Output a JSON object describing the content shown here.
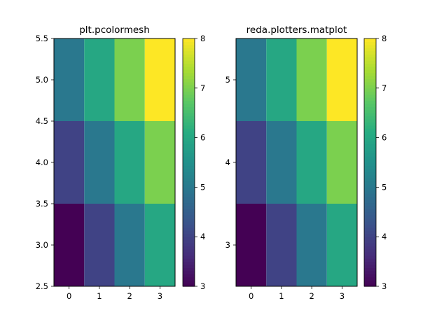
{
  "chart_data": [
    {
      "type": "heatmap",
      "title": "plt.pcolormesh",
      "xlabel": "",
      "ylabel": "",
      "x_ticks": [
        "0",
        "1",
        "2",
        "3"
      ],
      "y_ticks": [
        "2.5",
        "3.0",
        "3.5",
        "4.0",
        "4.5",
        "5.0",
        "5.5"
      ],
      "xlim": [
        -0.5,
        3.5
      ],
      "ylim": [
        2.5,
        5.5
      ],
      "x_centers": [
        0,
        1,
        2,
        3
      ],
      "y_edges": [
        2.5,
        3.5,
        4.5,
        5.5
      ],
      "values": [
        [
          3,
          4,
          5,
          6
        ],
        [
          4,
          5,
          6,
          7
        ],
        [
          5,
          6,
          7,
          8
        ]
      ],
      "colorbar": {
        "min": 3,
        "max": 8,
        "ticks": [
          "3",
          "4",
          "5",
          "6",
          "7",
          "8"
        ]
      },
      "colormap": "viridis"
    },
    {
      "type": "heatmap",
      "title": "reda.plotters.matplot",
      "xlabel": "",
      "ylabel": "",
      "x_ticks": [
        "0",
        "1",
        "2",
        "3"
      ],
      "y_ticks": [
        "3",
        "4",
        "5"
      ],
      "xlim": [
        -0.5,
        3.5
      ],
      "ylim": [
        2.5,
        5.5
      ],
      "x_centers": [
        0,
        1,
        2,
        3
      ],
      "y_edges": [
        2.5,
        3.5,
        4.5,
        5.5
      ],
      "values": [
        [
          3,
          4,
          5,
          6
        ],
        [
          4,
          5,
          6,
          7
        ],
        [
          5,
          6,
          7,
          8
        ]
      ],
      "colorbar": {
        "min": 3,
        "max": 8,
        "ticks": [
          "3",
          "4",
          "5",
          "6",
          "7",
          "8"
        ]
      },
      "colormap": "viridis"
    }
  ]
}
